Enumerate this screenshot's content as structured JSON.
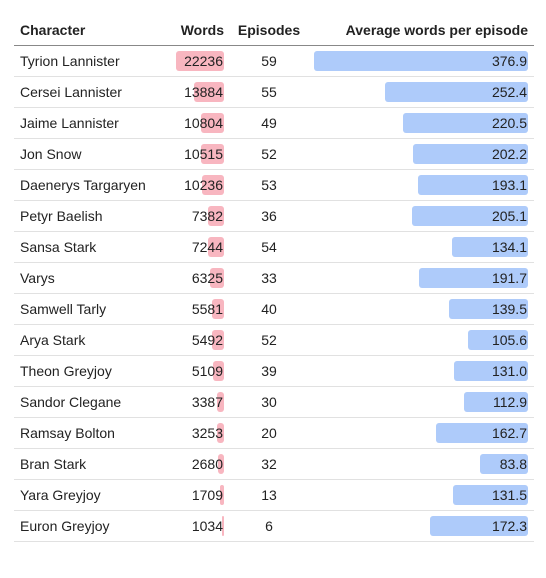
{
  "colors": {
    "words_bar": "#f8b6c0",
    "avg_bar": "#aecbfa"
  },
  "headers": {
    "character": "Character",
    "words": "Words",
    "episodes": "Episodes",
    "avg": "Average words per episode"
  },
  "rows": [
    {
      "character": "Tyrion Lannister",
      "words": "22236",
      "episodes": "59",
      "avg": "376.9"
    },
    {
      "character": "Cersei Lannister",
      "words": "13884",
      "episodes": "55",
      "avg": "252.4"
    },
    {
      "character": "Jaime Lannister",
      "words": "10804",
      "episodes": "49",
      "avg": "220.5"
    },
    {
      "character": "Jon Snow",
      "words": "10515",
      "episodes": "52",
      "avg": "202.2"
    },
    {
      "character": "Daenerys Targaryen",
      "words": "10236",
      "episodes": "53",
      "avg": "193.1"
    },
    {
      "character": "Petyr Baelish",
      "words": "7382",
      "episodes": "36",
      "avg": "205.1"
    },
    {
      "character": "Sansa Stark",
      "words": "7244",
      "episodes": "54",
      "avg": "134.1"
    },
    {
      "character": "Varys",
      "words": "6325",
      "episodes": "33",
      "avg": "191.7"
    },
    {
      "character": "Samwell Tarly",
      "words": "5581",
      "episodes": "40",
      "avg": "139.5"
    },
    {
      "character": "Arya Stark",
      "words": "5492",
      "episodes": "52",
      "avg": "105.6"
    },
    {
      "character": "Theon Greyjoy",
      "words": "5109",
      "episodes": "39",
      "avg": "131.0"
    },
    {
      "character": "Sandor Clegane",
      "words": "3387",
      "episodes": "30",
      "avg": "112.9"
    },
    {
      "character": "Ramsay Bolton",
      "words": "3253",
      "episodes": "20",
      "avg": "162.7"
    },
    {
      "character": "Bran Stark",
      "words": "2680",
      "episodes": "32",
      "avg": "83.8"
    },
    {
      "character": "Yara Greyjoy",
      "words": "1709",
      "episodes": "13",
      "avg": "131.5"
    },
    {
      "character": "Euron Greyjoy",
      "words": "1034",
      "episodes": "6",
      "avg": "172.3"
    }
  ]
}
